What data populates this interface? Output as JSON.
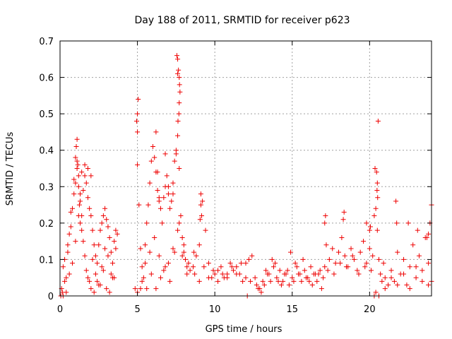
{
  "chart_data": {
    "type": "scatter",
    "title": "Day 188 of 2011, SRMTID for receiver p623",
    "xlabel": "GPS time / hours",
    "ylabel": "SRMTID / TECUs",
    "xlim": [
      0,
      24
    ],
    "ylim": [
      0,
      0.7
    ],
    "xticks": [
      0,
      5,
      10,
      15,
      20
    ],
    "xtick_labels": [
      "0",
      "5",
      "10",
      "15",
      "20"
    ],
    "yticks": [
      0,
      0.1,
      0.2,
      0.3,
      0.4,
      0.5,
      0.6,
      0.7
    ],
    "ytick_labels": [
      "0",
      "0.1",
      "0.2",
      "0.3",
      "0.4",
      "0.5",
      "0.6",
      "0.7"
    ],
    "grid": true,
    "marker": "+",
    "color": "#ee0000",
    "series": [
      {
        "name": "SRMTID",
        "x": [
          0.1,
          0.2,
          0.3,
          0.4,
          0.5,
          0.6,
          0.7,
          0.8,
          0.9,
          1.0,
          1.1,
          1.2,
          1.3,
          1.4,
          1.5,
          1.6,
          1.7,
          1.8,
          1.9,
          2.0,
          2.1,
          2.2,
          2.3,
          2.4,
          2.5,
          2.6,
          2.7,
          2.8,
          2.9,
          3.0,
          3.1,
          3.2,
          3.3,
          3.4,
          3.5,
          3.6,
          3.7,
          0.3,
          0.5,
          0.7,
          0.9,
          1.1,
          1.3,
          1.5,
          1.7,
          1.9,
          2.1,
          2.3,
          2.5,
          2.7,
          2.9,
          3.1,
          3.3,
          3.5,
          0.2,
          0.4,
          0.6,
          0.8,
          1.0,
          1.2,
          1.4,
          1.6,
          1.8,
          2.0,
          2.2,
          2.4,
          2.6,
          2.8,
          3.0,
          3.2,
          3.4,
          3.6,
          1.0,
          1.05,
          1.1,
          1.15,
          1.2,
          1.25,
          1.3,
          1.4,
          1.6,
          1.8,
          2.0,
          4.95,
          5.0,
          5.0,
          5.05,
          5.0,
          5.1,
          5.2,
          5.3,
          5.4,
          5.5,
          5.6,
          5.7,
          5.8,
          5.9,
          6.0,
          6.1,
          6.2,
          6.3,
          6.4,
          6.5,
          6.6,
          6.7,
          6.8,
          6.9,
          7.0,
          7.1,
          7.2,
          7.3,
          7.4,
          7.5,
          7.6,
          7.7,
          7.8,
          7.9,
          8.0,
          8.1,
          8.2,
          8.3,
          8.4,
          5.2,
          5.5,
          5.8,
          6.1,
          6.4,
          6.7,
          7.0,
          7.3,
          7.6,
          7.9,
          8.2,
          5.3,
          5.6,
          5.9,
          6.2,
          6.5,
          6.8,
          7.1,
          7.4,
          7.7,
          8.0,
          6.2,
          6.3,
          6.4,
          6.8,
          7.0,
          7.3,
          7.5,
          7.55,
          7.6,
          7.65,
          7.7,
          7.72,
          7.75,
          7.7,
          7.68,
          7.62,
          7.6,
          8.6,
          8.8,
          9.0,
          9.1,
          9.2,
          9.4,
          9.6,
          9.8,
          10.0,
          10.2,
          10.4,
          10.6,
          10.8,
          11.0,
          11.2,
          11.4,
          11.6,
          11.8,
          12.0,
          12.2,
          12.4,
          8.7,
          9.0,
          9.3,
          9.6,
          9.9,
          10.2,
          10.5,
          10.8,
          11.1,
          11.4,
          11.7,
          12.0,
          12.3,
          8.65,
          9.05,
          9.1,
          9.15,
          12.1,
          12.6,
          12.8,
          13.0,
          13.2,
          13.4,
          13.6,
          13.8,
          14.0,
          14.2,
          14.4,
          14.6,
          14.8,
          15.0,
          15.2,
          15.4,
          15.6,
          15.8,
          16.0,
          16.2,
          16.4,
          16.6,
          16.8,
          17.0,
          12.7,
          13.1,
          13.5,
          13.9,
          14.3,
          14.7,
          15.1,
          15.5,
          15.9,
          16.3,
          16.7,
          17.1,
          12.9,
          13.3,
          13.7,
          14.1,
          14.5,
          14.9,
          15.3,
          15.7,
          16.1,
          16.5,
          16.9,
          17.2,
          17.4,
          17.6,
          17.8,
          18.0,
          18.2,
          18.4,
          18.6,
          18.8,
          19.0,
          19.2,
          19.4,
          19.6,
          19.8,
          20.0,
          20.2,
          17.3,
          17.7,
          18.1,
          18.5,
          18.9,
          19.3,
          19.7,
          20.1,
          17.1,
          17.15,
          18.3,
          18.35,
          19.8,
          20.0,
          20.05,
          20.3,
          20.4,
          20.5,
          20.6,
          20.7,
          20.8,
          20.9,
          21.0,
          21.2,
          21.4,
          21.6,
          21.8,
          22.0,
          22.2,
          22.4,
          22.6,
          22.8,
          23.0,
          23.2,
          23.4,
          23.6,
          23.8,
          24.0,
          20.35,
          20.55,
          20.45,
          20.5,
          20.52,
          20.48,
          21.7,
          21.75,
          22.5,
          23.1,
          23.7,
          23.8,
          23.9,
          24.0,
          20.6,
          21.0,
          21.4,
          21.8,
          22.2,
          22.6,
          23.0,
          23.4,
          23.8,
          0.05,
          0.15,
          4.85,
          5.0,
          20.3,
          20.4
        ],
        "y": [
          0.02,
          0.08,
          0.1,
          0.05,
          0.14,
          0.17,
          0.19,
          0.24,
          0.28,
          0.31,
          0.35,
          0.3,
          0.26,
          0.22,
          0.29,
          0.33,
          0.31,
          0.27,
          0.24,
          0.22,
          0.18,
          0.14,
          0.11,
          0.09,
          0.14,
          0.18,
          0.2,
          0.22,
          0.24,
          0.21,
          0.19,
          0.16,
          0.12,
          0.09,
          0.15,
          0.18,
          0.17,
          0.04,
          0.12,
          0.23,
          0.32,
          0.37,
          0.2,
          0.15,
          0.07,
          0.04,
          0.1,
          0.06,
          0.03,
          0.08,
          0.13,
          0.11,
          0.06,
          0.05,
          0.0,
          0.01,
          0.06,
          0.09,
          0.15,
          0.22,
          0.18,
          0.11,
          0.05,
          0.02,
          0.01,
          0.04,
          0.03,
          0.07,
          0.02,
          0.01,
          0.05,
          0.13,
          0.38,
          0.41,
          0.43,
          0.36,
          0.33,
          0.25,
          0.28,
          0.34,
          0.36,
          0.35,
          0.33,
          0.48,
          0.5,
          0.45,
          0.54,
          0.36,
          0.25,
          0.13,
          0.08,
          0.05,
          0.14,
          0.2,
          0.25,
          0.31,
          0.37,
          0.41,
          0.38,
          0.34,
          0.29,
          0.27,
          0.24,
          0.2,
          0.27,
          0.3,
          0.33,
          0.28,
          0.24,
          0.26,
          0.31,
          0.37,
          0.4,
          0.44,
          0.35,
          0.22,
          0.16,
          0.12,
          0.1,
          0.08,
          0.09,
          0.07,
          0.02,
          0.09,
          0.12,
          0.16,
          0.11,
          0.07,
          0.09,
          0.13,
          0.18,
          0.11,
          0.06,
          0.04,
          0.02,
          0.06,
          0.02,
          0.05,
          0.08,
          0.04,
          0.12,
          0.2,
          0.14,
          0.45,
          0.34,
          0.26,
          0.39,
          0.3,
          0.28,
          0.39,
          0.66,
          0.65,
          0.62,
          0.6,
          0.58,
          0.56,
          0.53,
          0.5,
          0.48,
          0.61,
          0.08,
          0.11,
          0.14,
          0.28,
          0.26,
          0.18,
          0.09,
          0.05,
          0.06,
          0.07,
          0.08,
          0.05,
          0.06,
          0.09,
          0.07,
          0.08,
          0.06,
          0.04,
          0.09,
          0.1,
          0.11,
          0.06,
          0.04,
          0.08,
          0.05,
          0.07,
          0.04,
          0.06,
          0.05,
          0.08,
          0.06,
          0.09,
          0.05,
          0.04,
          0.12,
          0.21,
          0.25,
          0.22,
          0.0,
          0.05,
          0.02,
          0.01,
          0.03,
          0.06,
          0.04,
          0.08,
          0.05,
          0.07,
          0.04,
          0.06,
          0.03,
          0.05,
          0.09,
          0.06,
          0.04,
          0.07,
          0.05,
          0.08,
          0.06,
          0.04,
          0.07,
          0.05,
          0.03,
          0.04,
          0.06,
          0.09,
          0.03,
          0.07,
          0.04,
          0.06,
          0.05,
          0.03,
          0.06,
          0.08,
          0.02,
          0.07,
          0.1,
          0.04,
          0.06,
          0.12,
          0.08,
          0.1,
          0.04,
          0.06,
          0.02,
          0.14,
          0.1,
          0.13,
          0.09,
          0.12,
          0.16,
          0.11,
          0.08,
          0.13,
          0.1,
          0.07,
          0.12,
          0.15,
          0.09,
          0.13,
          0.11,
          0.07,
          0.06,
          0.09,
          0.08,
          0.11,
          0.06,
          0.08,
          0.07,
          0.2,
          0.22,
          0.21,
          0.23,
          0.2,
          0.18,
          0.19,
          0.22,
          0.24,
          0.18,
          0.1,
          0.06,
          0.04,
          0.09,
          0.05,
          0.03,
          0.07,
          0.04,
          0.12,
          0.06,
          0.1,
          0.03,
          0.08,
          0.14,
          0.05,
          0.11,
          0.07,
          0.16,
          0.09,
          0.04,
          0.35,
          0.48,
          0.34,
          0.31,
          0.27,
          0.29,
          0.26,
          0.2,
          0.2,
          0.18,
          0.16,
          0.17,
          0.2,
          0.25,
          0.0,
          0.02,
          0.05,
          0.03,
          0.06,
          0.02,
          0.08,
          0.04,
          0.03,
          0.0,
          0.01,
          0.02,
          0.01,
          0.0,
          0.01
        ]
      }
    ]
  }
}
